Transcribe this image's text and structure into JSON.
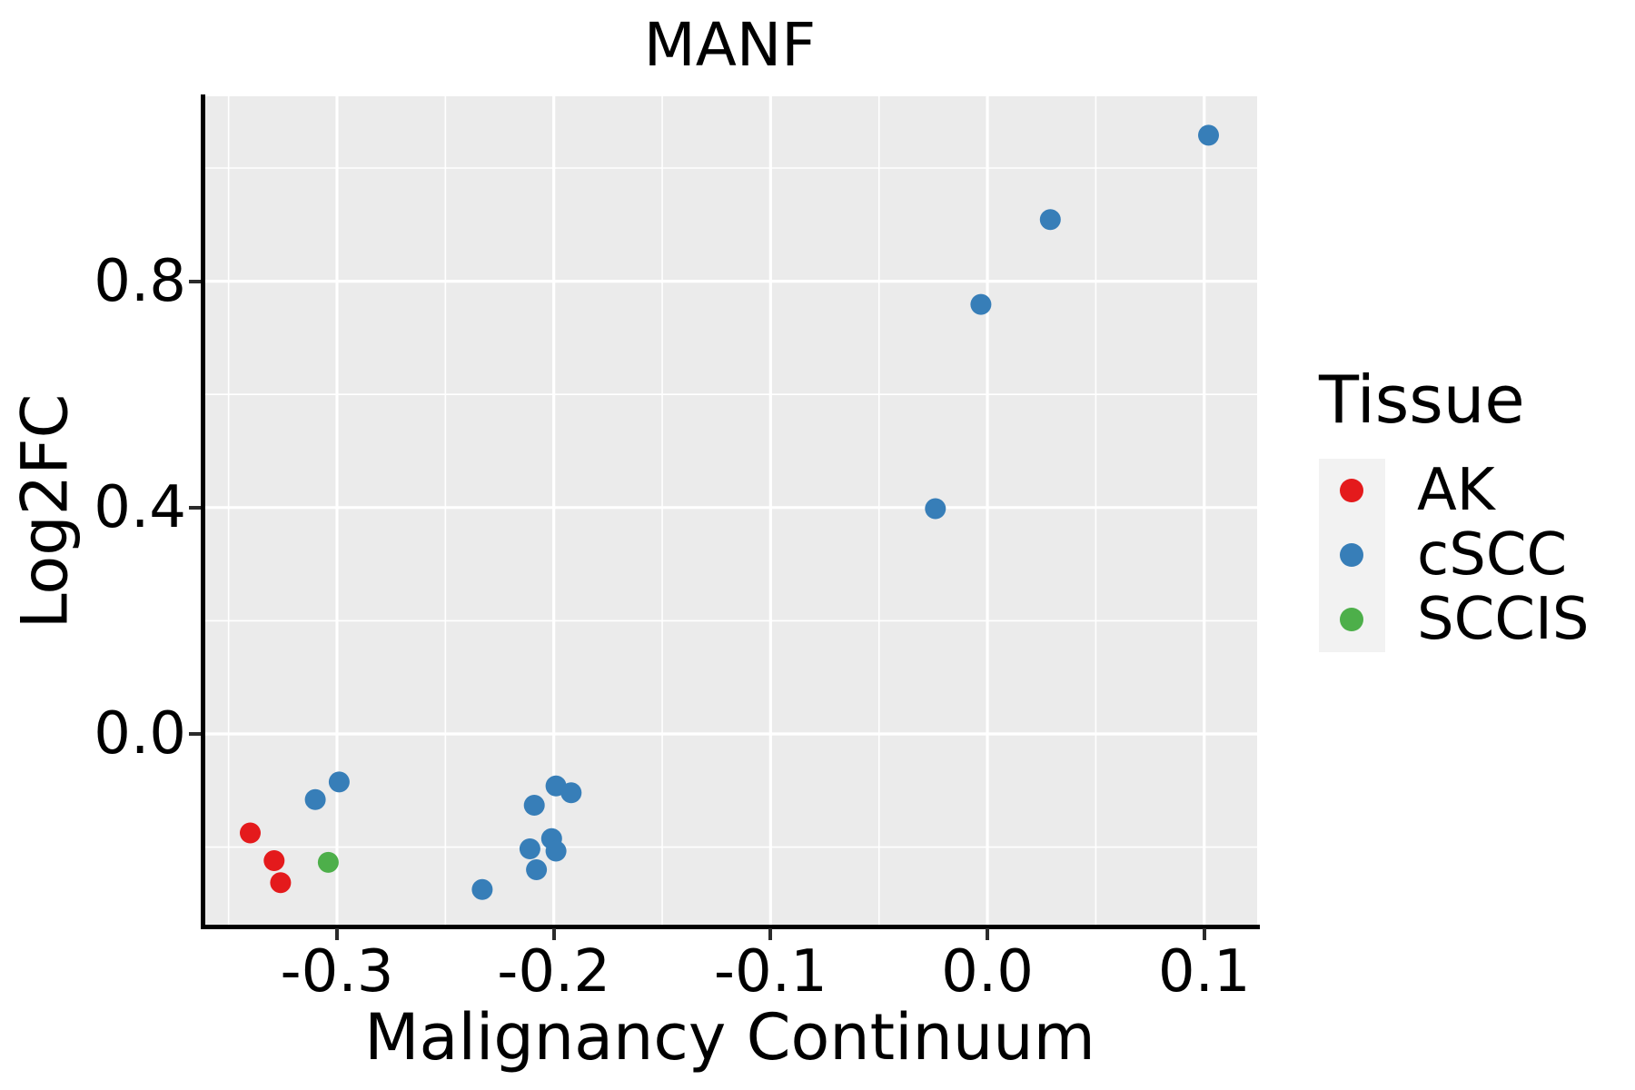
{
  "title": "MANF",
  "axes": {
    "x": {
      "label": "Malignancy Continuum",
      "tick_labels": [
        "-0.3",
        "-0.2",
        "-0.1",
        "0.0",
        "0.1"
      ],
      "ticks": [
        -0.3,
        -0.2,
        -0.1,
        0.0,
        0.1
      ],
      "minor_ticks": [
        -0.35,
        -0.25,
        -0.15,
        -0.05,
        0.05
      ],
      "range": [
        -0.362,
        0.1244
      ]
    },
    "y": {
      "label": "Log2FC",
      "tick_labels": [
        "0.0",
        "0.4",
        "0.8"
      ],
      "ticks": [
        0.0,
        0.4,
        0.8
      ],
      "minor_ticks": [
        -0.2,
        0.2,
        0.6,
        1.0
      ],
      "range": [
        -0.3403,
        1.1268
      ]
    }
  },
  "legend": {
    "title": "Tissue",
    "items": [
      {
        "label": "AK",
        "color": "#E41A1C"
      },
      {
        "label": "cSCC",
        "color": "#377EB8"
      },
      {
        "label": "SCCIS",
        "color": "#4DAF4A"
      }
    ]
  },
  "style_colors": {
    "panel_background": "#EBEBEB",
    "grid": "#FFFFFF",
    "legend_key_background": "#F2F2F2",
    "axis_line": "#000000",
    "tick_mark": "#2b2b2b"
  },
  "chart_data": {
    "type": "scatter",
    "title": "MANF",
    "xlabel": "Malignancy Continuum",
    "ylabel": "Log2FC",
    "xlim": [
      -0.362,
      0.1244
    ],
    "ylim": [
      -0.3403,
      1.1268
    ],
    "grid": "major-and-minor",
    "legend_position": "right",
    "legend_title": "Tissue",
    "series": [
      {
        "name": "AK",
        "color": "#E41A1C",
        "points": [
          [
            -0.34,
            -0.175
          ],
          [
            -0.329,
            -0.224
          ],
          [
            -0.326,
            -0.263
          ]
        ]
      },
      {
        "name": "cSCC",
        "color": "#377EB8",
        "points": [
          [
            -0.31,
            -0.116
          ],
          [
            -0.299,
            -0.085
          ],
          [
            -0.233,
            -0.275
          ],
          [
            -0.211,
            -0.203
          ],
          [
            -0.209,
            -0.126
          ],
          [
            -0.208,
            -0.24
          ],
          [
            -0.201,
            -0.185
          ],
          [
            -0.199,
            -0.207
          ],
          [
            -0.199,
            -0.092
          ],
          [
            -0.192,
            -0.104
          ],
          [
            -0.024,
            0.398
          ],
          [
            -0.003,
            0.759
          ],
          [
            0.029,
            0.909
          ],
          [
            0.102,
            1.058
          ]
        ]
      },
      {
        "name": "SCCIS",
        "color": "#4DAF4A",
        "points": [
          [
            -0.304,
            -0.227
          ]
        ]
      }
    ]
  }
}
